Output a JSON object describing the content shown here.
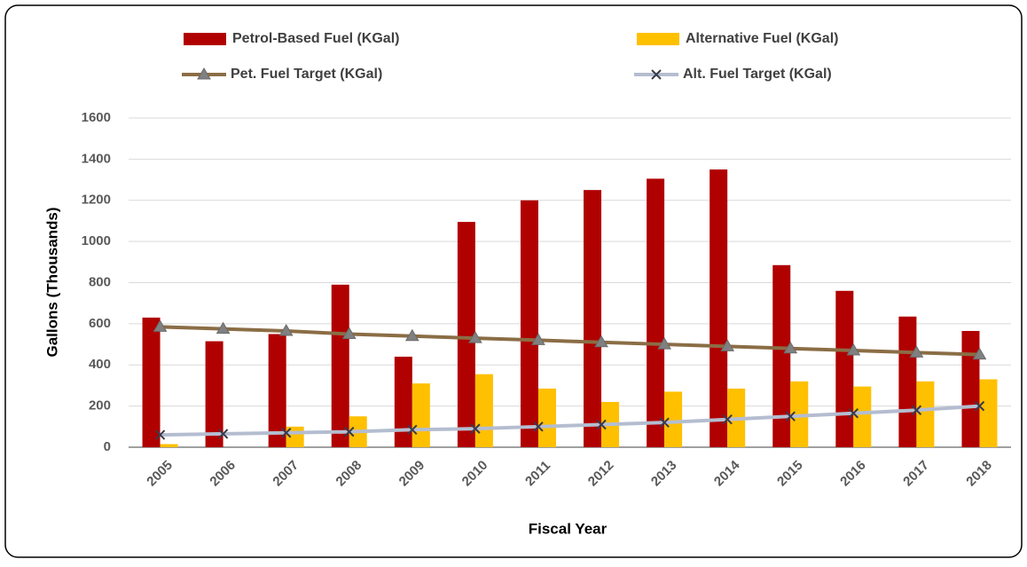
{
  "chart_data": {
    "type": "bar",
    "categories": [
      "2005",
      "2006",
      "2007",
      "2008",
      "2009",
      "2010",
      "2011",
      "2012",
      "2013",
      "2014",
      "2015",
      "2016",
      "2017",
      "2018"
    ],
    "series": [
      {
        "name": "Petrol-Based Fuel (KGal)",
        "color": "#b00000",
        "values": [
          630,
          515,
          550,
          790,
          440,
          1095,
          1200,
          1250,
          1305,
          1350,
          885,
          760,
          635,
          565
        ]
      },
      {
        "name": "Alternative Fuel (KGal)",
        "color": "#ffc000",
        "values": [
          15,
          0,
          100,
          150,
          310,
          355,
          285,
          220,
          270,
          285,
          320,
          295,
          320,
          330
        ]
      },
      {
        "name": "Pet. Fuel Target (KGal)",
        "type": "line",
        "marker": "triangle",
        "color": "#8b6d45",
        "values": [
          585,
          575,
          565,
          550,
          540,
          530,
          520,
          510,
          500,
          490,
          480,
          470,
          460,
          450
        ]
      },
      {
        "name": "Alt. Fuel Target (KGal)",
        "type": "line",
        "marker": "x",
        "color": "#b4bdd0",
        "values": [
          60,
          65,
          70,
          75,
          85,
          90,
          100,
          110,
          120,
          135,
          150,
          165,
          180,
          200
        ]
      }
    ],
    "x_label": "Fiscal Year",
    "y_label": "Gallons (Thousands)",
    "ylim": [
      0,
      1600
    ],
    "yticks": [
      0,
      200,
      400,
      600,
      800,
      1000,
      1200,
      1400,
      1600
    ],
    "grid": true
  }
}
